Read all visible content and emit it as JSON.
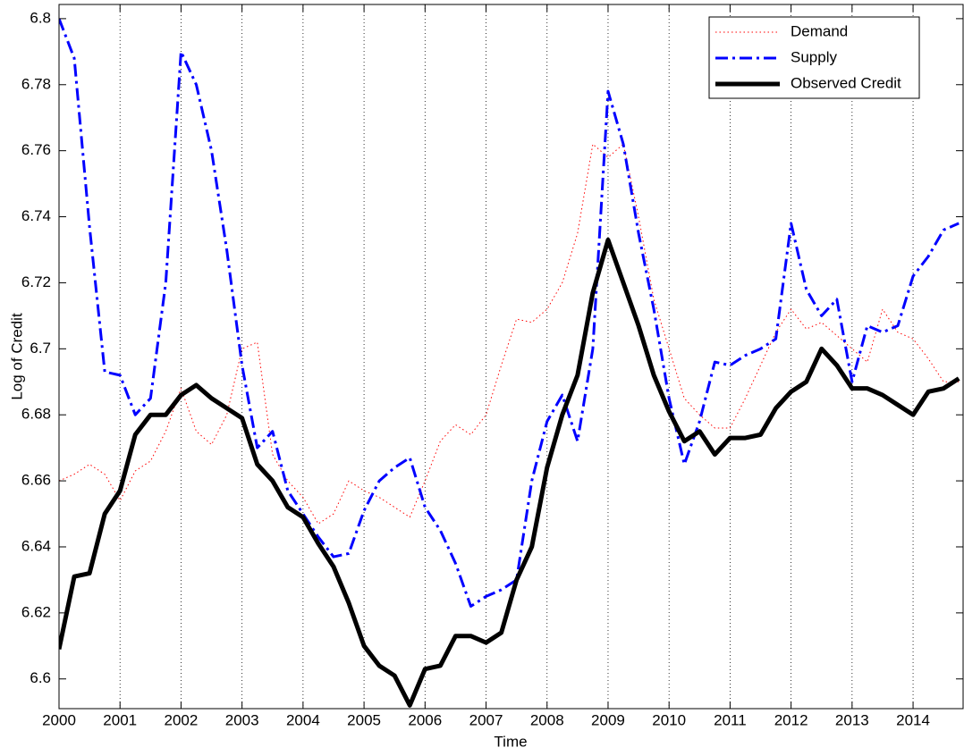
{
  "chart_data": {
    "type": "line",
    "xlabel": "Time",
    "ylabel": "Log of Credit",
    "x": [
      2000,
      2000.25,
      2000.5,
      2000.75,
      2001,
      2001.25,
      2001.5,
      2001.75,
      2002,
      2002.25,
      2002.5,
      2002.75,
      2003,
      2003.25,
      2003.5,
      2003.75,
      2004,
      2004.25,
      2004.5,
      2004.75,
      2005,
      2005.25,
      2005.5,
      2005.75,
      2006,
      2006.25,
      2006.5,
      2006.75,
      2007,
      2007.25,
      2007.5,
      2007.75,
      2008,
      2008.25,
      2008.5,
      2008.75,
      2009,
      2009.25,
      2009.5,
      2009.75,
      2010,
      2010.25,
      2010.5,
      2010.75,
      2011,
      2011.25,
      2011.5,
      2011.75,
      2012,
      2012.25,
      2012.5,
      2012.75,
      2013,
      2013.25,
      2013.5,
      2013.75,
      2014,
      2014.25,
      2014.5,
      2014.75
    ],
    "series": [
      {
        "name": "Demand",
        "color": "#ff0000",
        "dash": "dotted",
        "width": 1,
        "values": [
          6.66,
          6.662,
          6.665,
          6.662,
          6.654,
          6.663,
          6.666,
          6.675,
          6.688,
          6.675,
          6.671,
          6.68,
          6.7,
          6.702,
          6.668,
          6.66,
          6.655,
          6.647,
          6.65,
          6.66,
          6.657,
          6.655,
          6.652,
          6.649,
          6.66,
          6.672,
          6.677,
          6.674,
          6.68,
          6.695,
          6.709,
          6.708,
          6.712,
          6.72,
          6.735,
          6.762,
          6.758,
          6.762,
          6.74,
          6.715,
          6.7,
          6.685,
          6.68,
          6.676,
          6.676,
          6.685,
          6.695,
          6.705,
          6.712,
          6.706,
          6.708,
          6.704,
          6.7,
          6.696,
          6.712,
          6.705,
          6.703,
          6.697,
          6.69,
          6.69
        ]
      },
      {
        "name": "Supply",
        "color": "#0000ff",
        "dash": "dashdot",
        "width": 3,
        "values": [
          6.8,
          6.788,
          6.737,
          6.693,
          6.692,
          6.68,
          6.685,
          6.72,
          6.79,
          6.78,
          6.76,
          6.73,
          6.695,
          6.67,
          6.675,
          6.657,
          6.65,
          6.643,
          6.637,
          6.638,
          6.651,
          6.66,
          6.664,
          6.667,
          6.652,
          6.645,
          6.635,
          6.622,
          6.625,
          6.627,
          6.63,
          6.66,
          6.678,
          6.686,
          6.672,
          6.7,
          6.778,
          6.762,
          6.735,
          6.712,
          6.685,
          6.665,
          6.678,
          6.696,
          6.695,
          6.698,
          6.7,
          6.703,
          6.738,
          6.718,
          6.71,
          6.715,
          6.69,
          6.707,
          6.705,
          6.707,
          6.722,
          6.728,
          6.736,
          6.738
        ]
      },
      {
        "name": "Observed Credit",
        "color": "#000000",
        "dash": "solid",
        "width": 5,
        "values": [
          6.609,
          6.631,
          6.632,
          6.65,
          6.657,
          6.674,
          6.68,
          6.68,
          6.686,
          6.689,
          6.685,
          6.682,
          6.679,
          6.665,
          6.66,
          6.652,
          6.649,
          6.641,
          6.634,
          6.623,
          6.61,
          6.604,
          6.601,
          6.592,
          6.603,
          6.604,
          6.613,
          6.613,
          6.611,
          6.614,
          6.63,
          6.64,
          6.664,
          6.68,
          6.692,
          6.717,
          6.733,
          6.72,
          6.707,
          6.692,
          6.681,
          6.672,
          6.675,
          6.668,
          6.673,
          6.673,
          6.674,
          6.682,
          6.687,
          6.69,
          6.7,
          6.695,
          6.688,
          6.688,
          6.686,
          6.683,
          6.68,
          6.687,
          6.688,
          6.691
        ]
      }
    ],
    "xlim": [
      2000,
      2014.82
    ],
    "ylim": [
      6.591,
      6.8043
    ],
    "xticks": [
      2000,
      2001,
      2002,
      2003,
      2004,
      2005,
      2006,
      2007,
      2008,
      2009,
      2010,
      2011,
      2012,
      2013,
      2014
    ],
    "yticks": [
      6.6,
      6.62,
      6.64,
      6.66,
      6.68,
      6.7,
      6.72,
      6.74,
      6.76,
      6.78,
      6.8
    ],
    "grid": "x",
    "legend": "upper right"
  }
}
